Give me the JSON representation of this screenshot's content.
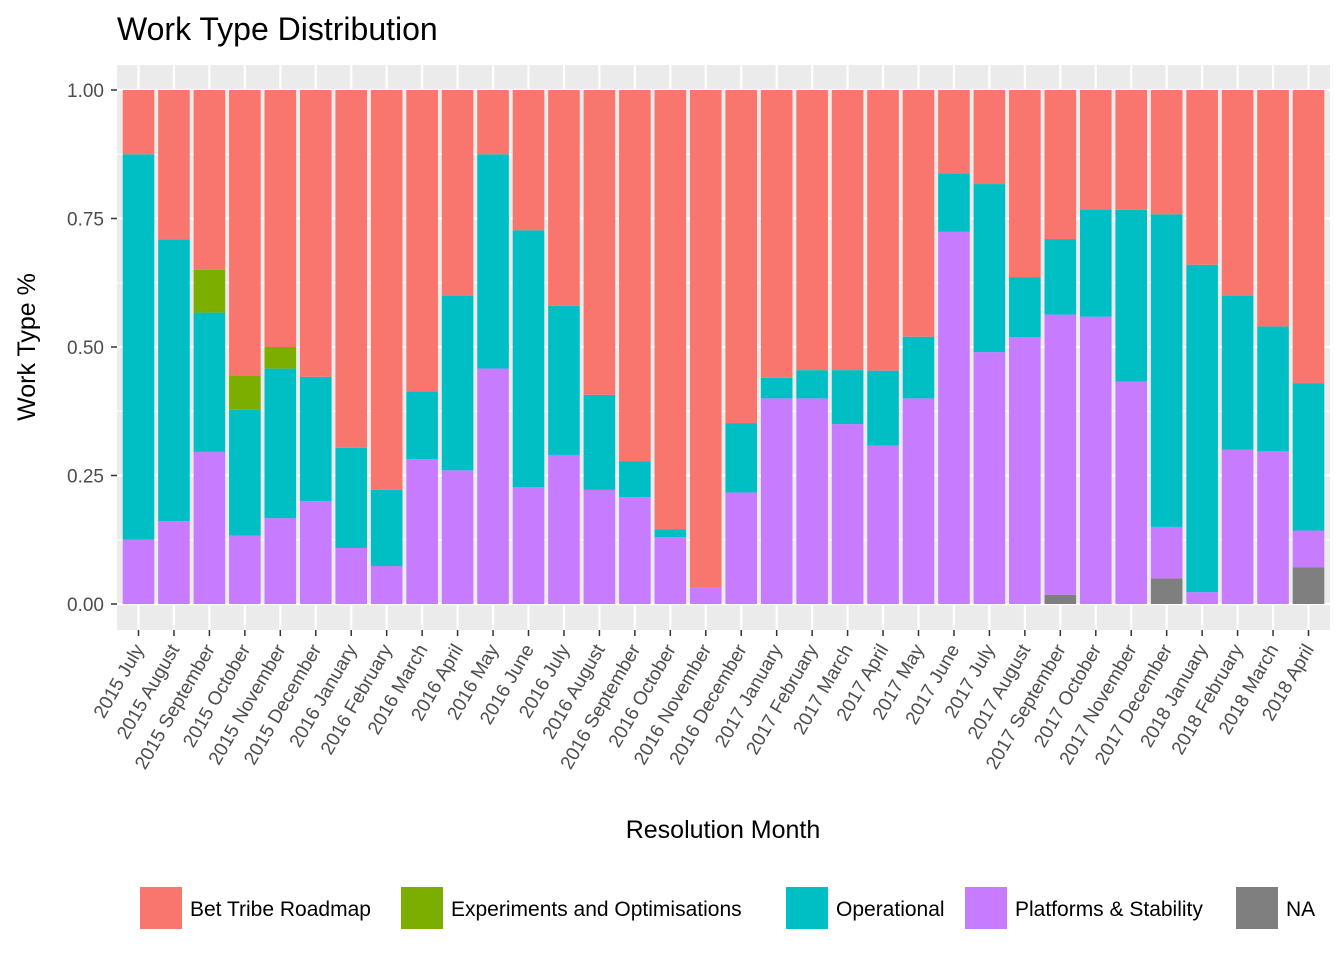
{
  "chart_data": {
    "type": "bar",
    "stacked": true,
    "normalized": true,
    "title": "Work Type Distribution",
    "xlabel": "Resolution Month",
    "ylabel": "Work Type %",
    "ylim": [
      0,
      1
    ],
    "yticks": [
      "0.00",
      "0.25",
      "0.50",
      "0.75",
      "1.00"
    ],
    "grid": true,
    "legend_position": "bottom",
    "categories": [
      "2015 July",
      "2015 August",
      "2015 September",
      "2015 October",
      "2015 November",
      "2015 December",
      "2016 January",
      "2016 February",
      "2016 March",
      "2016 April",
      "2016 May",
      "2016 June",
      "2016 July",
      "2016 August",
      "2016 September",
      "2016 October",
      "2016 November",
      "2016 December",
      "2017 January",
      "2017 February",
      "2017 March",
      "2017 April",
      "2017 May",
      "2017 June",
      "2017 July",
      "2017 August",
      "2017 September",
      "2017 October",
      "2017 November",
      "2017 December",
      "2018 January",
      "2018 February",
      "2018 March",
      "2018 April"
    ],
    "series": [
      {
        "name": "NA",
        "color": "#7f7f7f",
        "values": [
          0,
          0,
          0,
          0,
          0,
          0,
          0,
          0,
          0,
          0,
          0,
          0,
          0,
          0,
          0,
          0,
          0,
          0,
          0,
          0,
          0,
          0,
          0,
          0,
          0,
          0,
          0.018,
          0,
          0,
          0.05,
          0,
          0,
          0,
          0.071
        ]
      },
      {
        "name": "Platforms & Stability",
        "color": "#c77cff",
        "values": [
          0.125,
          0.161,
          0.296,
          0.133,
          0.167,
          0.2,
          0.109,
          0.074,
          0.282,
          0.26,
          0.458,
          0.227,
          0.29,
          0.222,
          0.208,
          0.13,
          0.033,
          0.217,
          0.4,
          0.4,
          0.35,
          0.308,
          0.4,
          0.724,
          0.49,
          0.519,
          0.545,
          0.559,
          0.433,
          0.1,
          0.023,
          0.3,
          0.297,
          0.072
        ]
      },
      {
        "name": "Operational",
        "color": "#00bfc4",
        "values": [
          0.75,
          0.548,
          0.271,
          0.245,
          0.291,
          0.242,
          0.195,
          0.148,
          0.132,
          0.34,
          0.417,
          0.5,
          0.29,
          0.185,
          0.07,
          0.015,
          0,
          0.135,
          0.04,
          0.055,
          0.105,
          0.146,
          0.12,
          0.114,
          0.327,
          0.117,
          0.147,
          0.209,
          0.334,
          0.608,
          0.637,
          0.3,
          0.243,
          0.286
        ]
      },
      {
        "name": "Experiments and Optimisations",
        "color": "#7cae00",
        "values": [
          0,
          0,
          0.083,
          0.067,
          0.042,
          0,
          0,
          0,
          0,
          0,
          0,
          0,
          0,
          0,
          0,
          0,
          0,
          0,
          0,
          0,
          0,
          0,
          0,
          0,
          0,
          0,
          0,
          0,
          0,
          0,
          0,
          0,
          0,
          0
        ]
      },
      {
        "name": "Bet Tribe Roadmap",
        "color": "#f8766d",
        "values": [
          0.125,
          0.291,
          0.35,
          0.555,
          0.5,
          0.558,
          0.696,
          0.778,
          0.586,
          0.4,
          0.125,
          0.273,
          0.42,
          0.593,
          0.722,
          0.855,
          0.967,
          0.648,
          0.56,
          0.545,
          0.545,
          0.546,
          0.48,
          0.162,
          0.183,
          0.364,
          0.29,
          0.232,
          0.233,
          0.242,
          0.34,
          0.4,
          0.46,
          0.571
        ]
      }
    ],
    "legend": [
      {
        "name": "Bet Tribe Roadmap",
        "color": "#f8766d"
      },
      {
        "name": "Experiments and Optimisations",
        "color": "#7cae00"
      },
      {
        "name": "Operational",
        "color": "#00bfc4"
      },
      {
        "name": "Platforms & Stability",
        "color": "#c77cff"
      },
      {
        "name": "NA",
        "color": "#7f7f7f"
      }
    ],
    "panel_background": "#ebebeb",
    "grid_color": "#ffffff"
  }
}
